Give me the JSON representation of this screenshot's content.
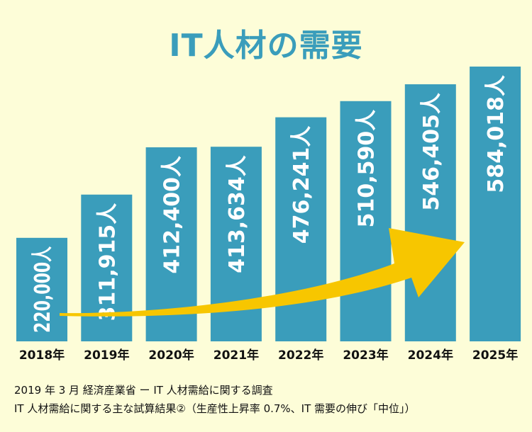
{
  "chart_data": {
    "type": "bar",
    "title": "IT人材の需要",
    "categories": [
      "2018年",
      "2019年",
      "2020年",
      "2021年",
      "2022年",
      "2023年",
      "2024年",
      "2025年"
    ],
    "values": [
      220000,
      311915,
      412400,
      413634,
      476241,
      510590,
      546405,
      584018
    ],
    "value_labels": [
      "220,000人",
      "311,915人",
      "412,400人",
      "413,634人",
      "476,241人",
      "510,590人",
      "546,405人",
      "584,018人"
    ],
    "ylim": [
      0,
      584018
    ],
    "grid": false,
    "colors": {
      "bar": "#3a9dbb",
      "arrow": "#f7c600",
      "title": "#3a9dbb",
      "background": "#fdfdd8"
    }
  },
  "source": {
    "line1": "2019 年 3 月 経済産業省 ー IT 人材需給に関する調査",
    "line2": "IT 人材需給に関する主な試算結果②（生産性上昇率 0.7%、IT 需要の伸び「中位」）"
  }
}
